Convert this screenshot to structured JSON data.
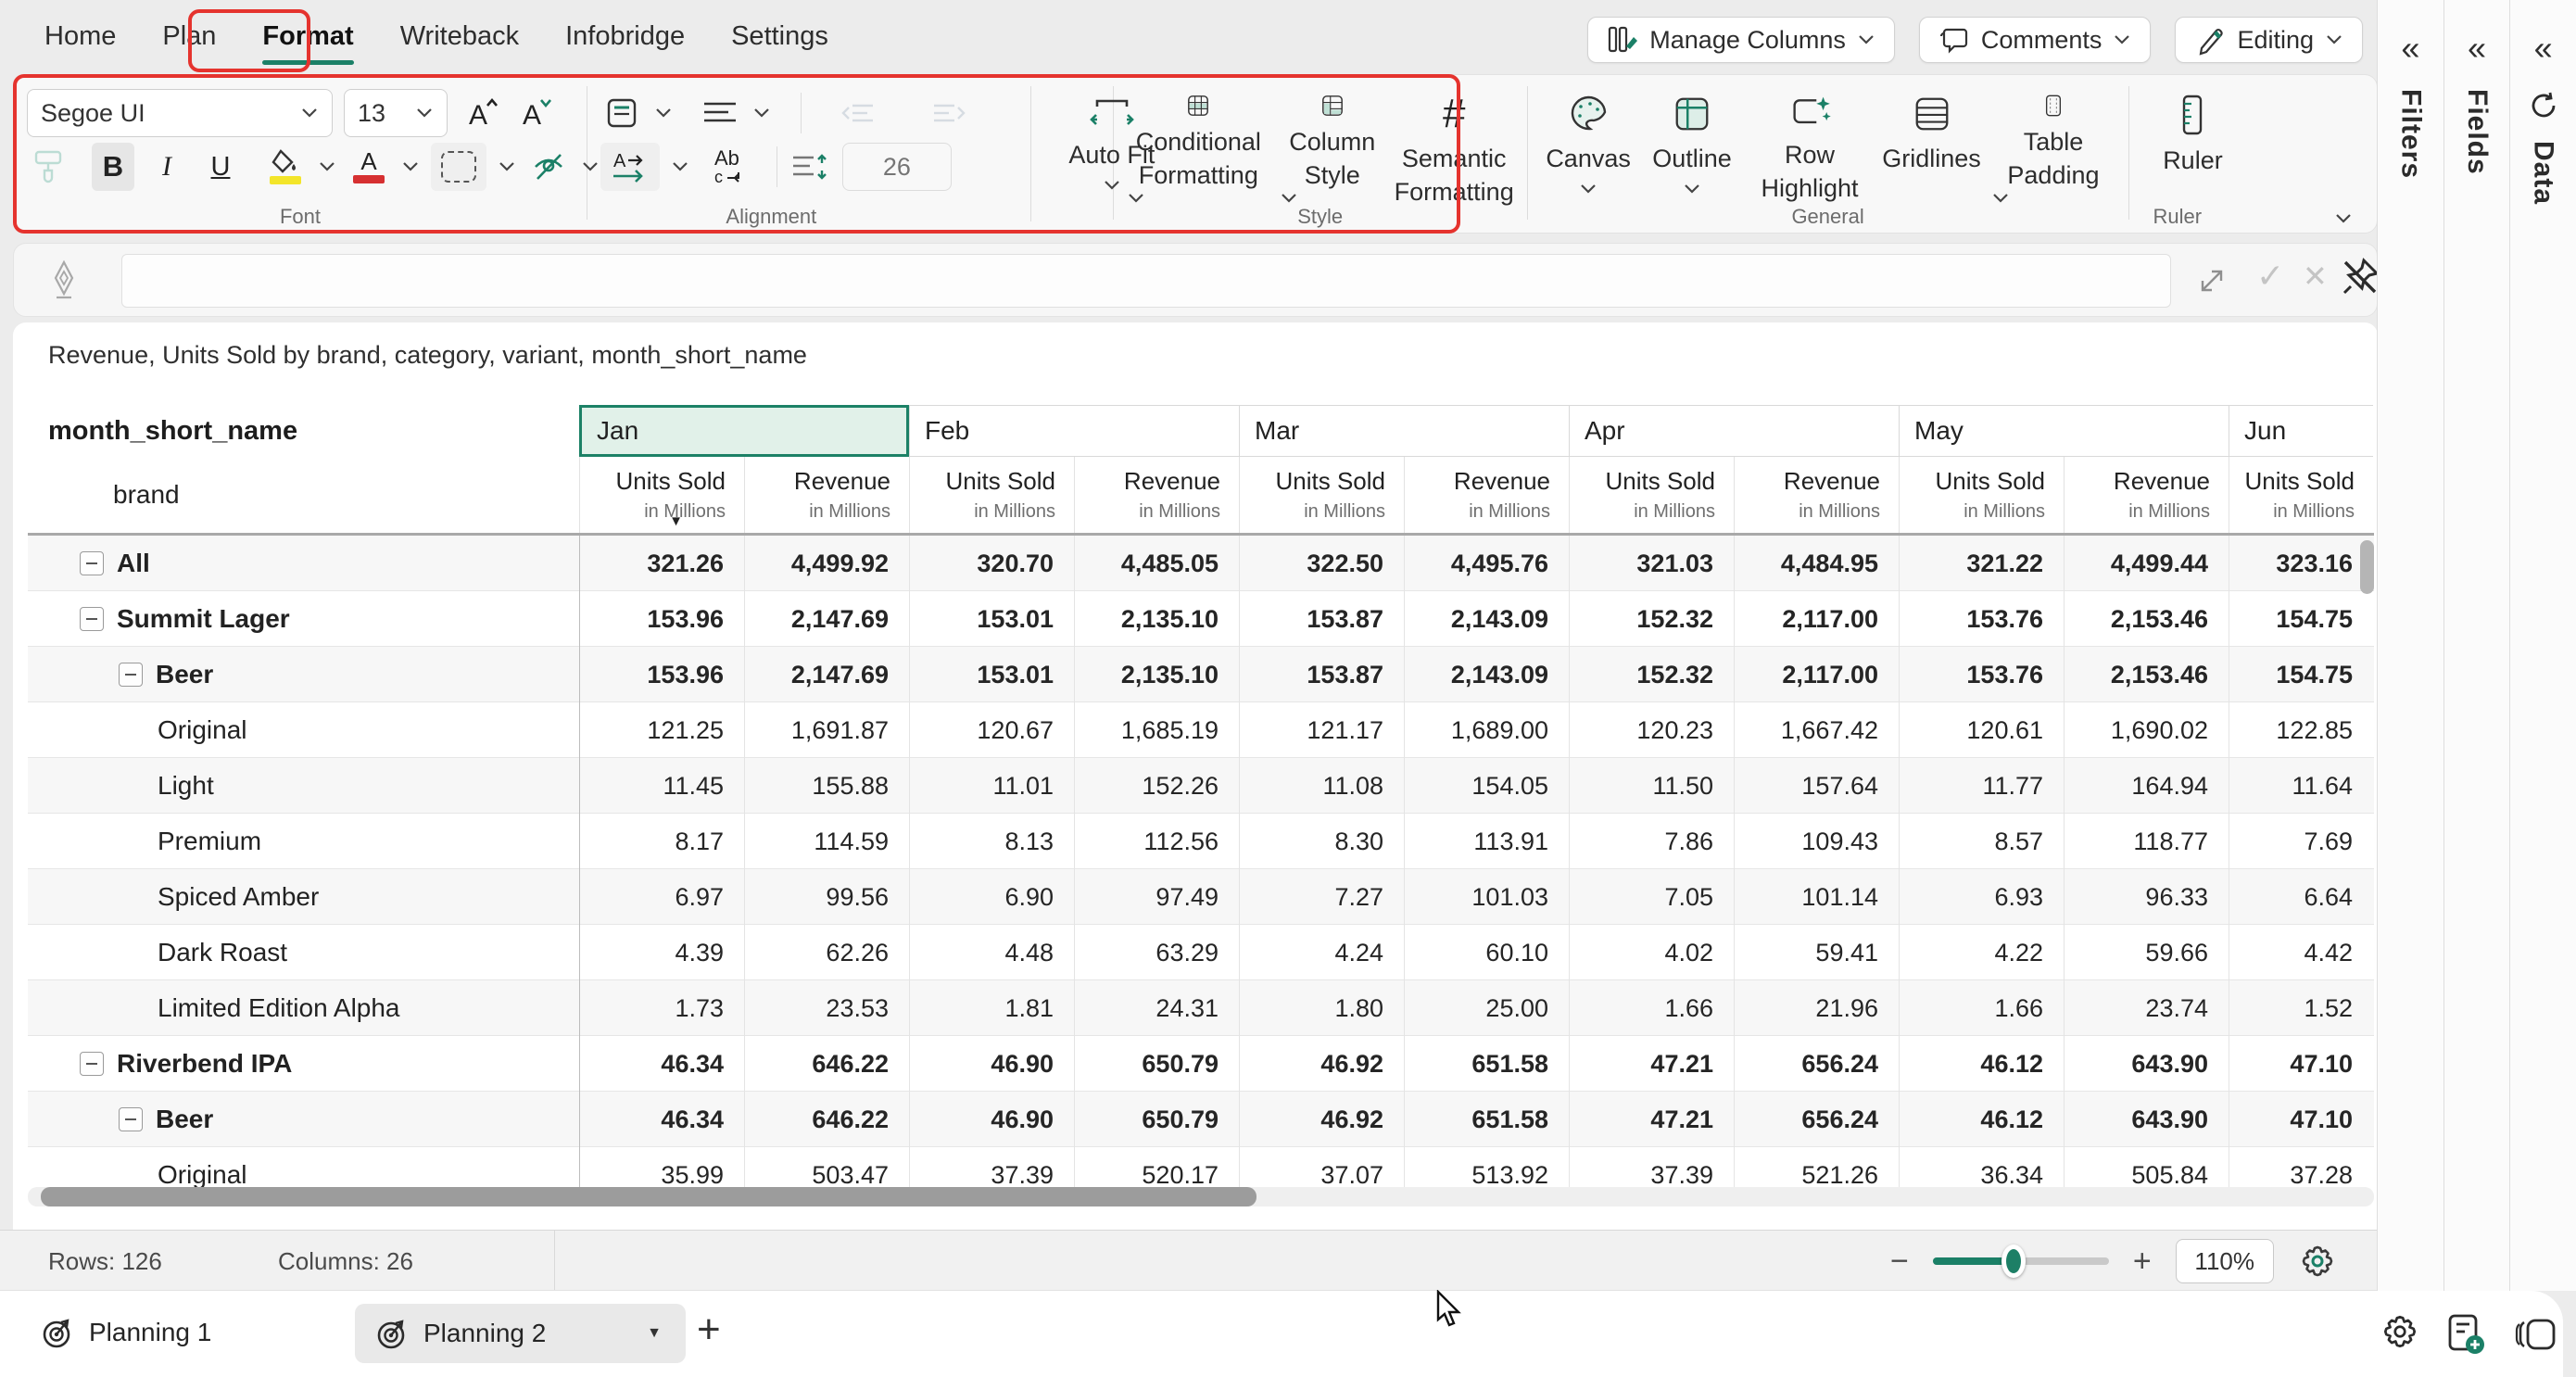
{
  "menu": {
    "items": [
      {
        "label": "Home"
      },
      {
        "label": "Plan"
      },
      {
        "label": "Format"
      },
      {
        "label": "Writeback"
      },
      {
        "label": "Infobridge"
      },
      {
        "label": "Settings"
      }
    ],
    "active": "Format"
  },
  "top_actions": {
    "manage_columns": "Manage Columns",
    "comments": "Comments",
    "editing": "Editing"
  },
  "ribbon": {
    "font": {
      "label": "Font",
      "font_name": "Segoe UI",
      "font_size": "13"
    },
    "alignment": {
      "label": "Alignment",
      "row_height_placeholder": "26",
      "autofit_label": "Auto Fit"
    },
    "style": {
      "label": "Style",
      "conditional_formatting": "Conditional Formatting",
      "column_style": "Column Style",
      "semantic_formatting": "Semantic Formatting"
    },
    "general": {
      "label": "General",
      "canvas": "Canvas",
      "outline": "Outline",
      "row_highlight": "Row Highlight",
      "gridlines": "Gridlines",
      "table_padding": "Table Padding"
    },
    "ruler": {
      "label": "Ruler",
      "button": "Ruler"
    }
  },
  "formula_bar": {
    "value": ""
  },
  "content": {
    "title": "Revenue, Units Sold by brand, category, variant, month_short_name",
    "table": {
      "corner_header": "month_short_name",
      "row_header": "brand",
      "metric_names": [
        "Units Sold",
        "Revenue"
      ],
      "metric_subtitle": "in Millions",
      "months": [
        {
          "label": "Jan",
          "selected": true,
          "metrics": 2
        },
        {
          "label": "Feb",
          "selected": false,
          "metrics": 2
        },
        {
          "label": "Mar",
          "selected": false,
          "metrics": 2
        },
        {
          "label": "Apr",
          "selected": false,
          "metrics": 2
        },
        {
          "label": "May",
          "selected": false,
          "metrics": 2
        },
        {
          "label": "Jun",
          "selected": false,
          "metrics": 1
        }
      ],
      "rows": [
        {
          "label": "All",
          "level": 0,
          "collapse": true,
          "bold": true,
          "values": [
            "321.26",
            "4,499.92",
            "320.70",
            "4,485.05",
            "322.50",
            "4,495.76",
            "321.03",
            "4,484.95",
            "321.22",
            "4,499.44",
            "323.16"
          ]
        },
        {
          "label": "Summit Lager",
          "level": 0,
          "collapse": true,
          "bold": true,
          "values": [
            "153.96",
            "2,147.69",
            "153.01",
            "2,135.10",
            "153.87",
            "2,143.09",
            "152.32",
            "2,117.00",
            "153.76",
            "2,153.46",
            "154.75"
          ]
        },
        {
          "label": "Beer",
          "level": 1,
          "collapse": true,
          "bold": true,
          "values": [
            "153.96",
            "2,147.69",
            "153.01",
            "2,135.10",
            "153.87",
            "2,143.09",
            "152.32",
            "2,117.00",
            "153.76",
            "2,153.46",
            "154.75"
          ]
        },
        {
          "label": "Original",
          "level": 2,
          "collapse": false,
          "bold": false,
          "values": [
            "121.25",
            "1,691.87",
            "120.67",
            "1,685.19",
            "121.17",
            "1,689.00",
            "120.23",
            "1,667.42",
            "120.61",
            "1,690.02",
            "122.85"
          ]
        },
        {
          "label": "Light",
          "level": 2,
          "collapse": false,
          "bold": false,
          "values": [
            "11.45",
            "155.88",
            "11.01",
            "152.26",
            "11.08",
            "154.05",
            "11.50",
            "157.64",
            "11.77",
            "164.94",
            "11.64"
          ]
        },
        {
          "label": "Premium",
          "level": 2,
          "collapse": false,
          "bold": false,
          "values": [
            "8.17",
            "114.59",
            "8.13",
            "112.56",
            "8.30",
            "113.91",
            "7.86",
            "109.43",
            "8.57",
            "118.77",
            "7.69"
          ]
        },
        {
          "label": "Spiced Amber",
          "level": 2,
          "collapse": false,
          "bold": false,
          "values": [
            "6.97",
            "99.56",
            "6.90",
            "97.49",
            "7.27",
            "101.03",
            "7.05",
            "101.14",
            "6.93",
            "96.33",
            "6.64"
          ]
        },
        {
          "label": "Dark Roast",
          "level": 2,
          "collapse": false,
          "bold": false,
          "values": [
            "4.39",
            "62.26",
            "4.48",
            "63.29",
            "4.24",
            "60.10",
            "4.02",
            "59.41",
            "4.22",
            "59.66",
            "4.42"
          ]
        },
        {
          "label": "Limited Edition Alpha",
          "level": 2,
          "collapse": false,
          "bold": false,
          "values": [
            "1.73",
            "23.53",
            "1.81",
            "24.31",
            "1.80",
            "25.00",
            "1.66",
            "21.96",
            "1.66",
            "23.74",
            "1.52"
          ]
        },
        {
          "label": "Riverbend IPA",
          "level": 0,
          "collapse": true,
          "bold": true,
          "values": [
            "46.34",
            "646.22",
            "46.90",
            "650.79",
            "46.92",
            "651.58",
            "47.21",
            "656.24",
            "46.12",
            "643.90",
            "47.10"
          ]
        },
        {
          "label": "Beer",
          "level": 1,
          "collapse": true,
          "bold": true,
          "values": [
            "46.34",
            "646.22",
            "46.90",
            "650.79",
            "46.92",
            "651.58",
            "47.21",
            "656.24",
            "46.12",
            "643.90",
            "47.10"
          ]
        },
        {
          "label": "Original",
          "level": 2,
          "collapse": false,
          "bold": false,
          "values": [
            "35.99",
            "503.47",
            "37.39",
            "520.17",
            "37.07",
            "513.92",
            "37.39",
            "521.26",
            "36.34",
            "505.84",
            "37.28"
          ]
        }
      ]
    }
  },
  "status_bar": {
    "rows_label": "Rows: 126",
    "columns_label": "Columns: 26",
    "zoom_value": "110%"
  },
  "sheet_tabs": {
    "tab1": "Planning 1",
    "tab2": "Planning 2"
  },
  "sidebar": {
    "filters": "Filters",
    "fields": "Fields",
    "data": "Data"
  },
  "colors": {
    "accent": "#1b8067",
    "annotation": "#e5332e",
    "selected_cell_bg": "#e1f1e9",
    "fill_yellow": "#f3e52a",
    "font_red": "#d63031"
  }
}
